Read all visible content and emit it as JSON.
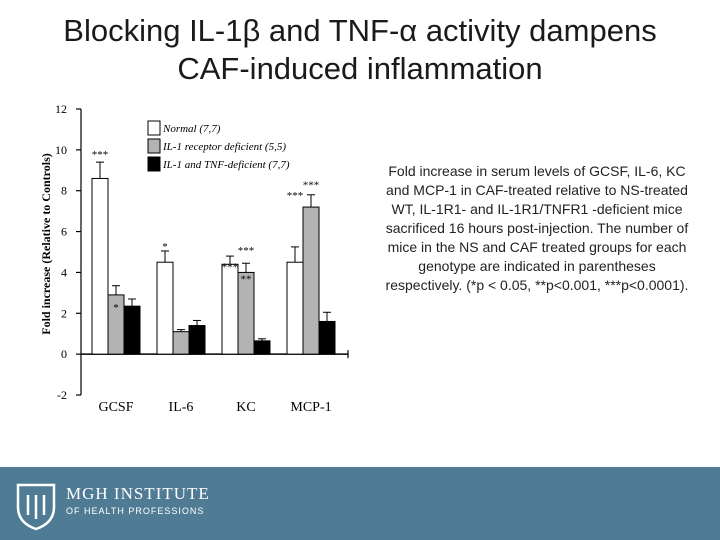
{
  "slide": {
    "title_line1": "Blocking IL-1β and TNF-α activity dampens",
    "title_line2": "CAF-induced inflammation",
    "caption": "Fold increase in serum levels of GCSF, IL-6, KC and MCP-1 in CAF-treated relative to NS-treated WT, IL-1R1- and IL-1R1/TNFR1 -deficient mice sacrificed 16 hours post-injection. The number of mice in the NS and CAF treated groups for each genotype are indicated in parentheses respectively. (*p < 0.05, **p<0.001, ***p<0.0001).",
    "logo_line1": "MGH INSTITUTE",
    "logo_line2": "OF HEALTH PROFESSIONS"
  },
  "colors": {
    "footer": "#4f7b95",
    "footer_light": "#7396ab",
    "series": [
      "#ffffff",
      "#b3b3b3",
      "#000000"
    ]
  },
  "chart_data": {
    "type": "bar",
    "ylabel": "Fold increase (Relative to Controls)",
    "ylim": [
      -2,
      12
    ],
    "yticks": [
      -2,
      0,
      2,
      4,
      6,
      8,
      10,
      12
    ],
    "categories": [
      "GCSF",
      "IL-6",
      "KC",
      "MCP-1"
    ],
    "series": [
      {
        "name": "Normal (7,7)",
        "values": [
          8.6,
          4.5,
          4.4,
          4.5
        ],
        "errors": [
          0.8,
          0.55,
          0.4,
          0.75
        ]
      },
      {
        "name": "IL-1 receptor deficient (5,5)",
        "values": [
          2.9,
          1.1,
          4.0,
          7.2
        ],
        "errors": [
          0.45,
          0.1,
          0.45,
          0.6
        ]
      },
      {
        "name": "IL-1 and TNF-deficient (7,7)",
        "values": [
          2.35,
          1.4,
          0.65,
          1.6
        ],
        "errors": [
          0.35,
          0.25,
          0.1,
          0.45
        ]
      }
    ],
    "annotations": [
      {
        "text": "***",
        "category": 0,
        "series": 0,
        "y": 9.6
      },
      {
        "text": "*",
        "category": 0,
        "series": 1,
        "y": 2.1
      },
      {
        "text": "*",
        "category": 1,
        "series": 0,
        "y": 5.1
      },
      {
        "text": "***",
        "category": 2,
        "series": 0,
        "y": 4.1
      },
      {
        "text": "***",
        "category": 2,
        "series": 1,
        "y": 4.9
      },
      {
        "text": "**",
        "category": 2,
        "series": 1,
        "y": 3.5
      },
      {
        "text": "***",
        "category": 3,
        "series": 0,
        "y": 7.6
      },
      {
        "text": "***",
        "category": 3,
        "series": 1,
        "y": 8.1
      }
    ],
    "legend_position": "top"
  }
}
